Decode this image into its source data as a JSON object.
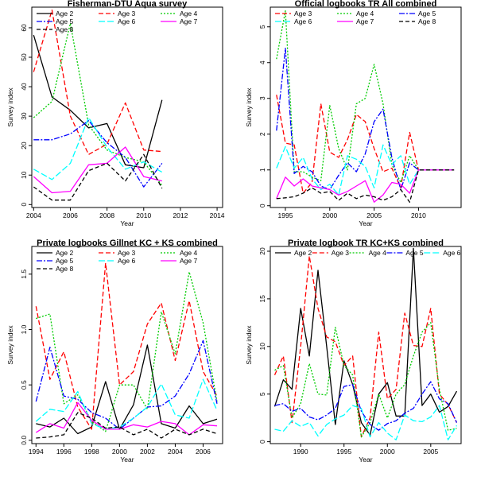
{
  "colors": {
    "Age 2": "#000000",
    "Age 3": "#ff0000",
    "Age 4": "#00cc00",
    "Age 5": "#0000ff",
    "Age 6": "#00ffff",
    "Age 7": "#ff00ff",
    "Age 8": "#000000"
  },
  "dash": {
    "Age 2": "",
    "Age 3": "6,3",
    "Age 4": "2,2",
    "Age 5": "7,2,2,2",
    "Age 6": "8,3",
    "Age 7": "",
    "Age 8": "5,3"
  },
  "chart_data": [
    {
      "type": "line",
      "title": "Fisherman-DTU Aqua survey",
      "xlabel": "Year",
      "ylabel": "Survey index",
      "xlim": [
        2003.9,
        2014.3
      ],
      "ylim": [
        -1,
        67
      ],
      "xticks": [
        2004,
        2006,
        2008,
        2010,
        2012,
        2014
      ],
      "yticks": [
        0,
        10,
        20,
        30,
        40,
        50,
        60
      ],
      "legend_cols": 3,
      "legend": [
        "Age 2",
        "Age 3",
        "Age 4",
        "Age 5",
        "Age 6",
        "Age 7",
        "Age 8"
      ],
      "x": [
        2004,
        2005,
        2006,
        2007,
        2008,
        2009,
        2010,
        2011
      ],
      "series": [
        {
          "name": "Age 2",
          "values": [
            57.5,
            36.5,
            32,
            26,
            27.5,
            13.5,
            12.5,
            35.5
          ]
        },
        {
          "name": "Age 3",
          "values": [
            45,
            66,
            30,
            17,
            20.5,
            34.5,
            18.5,
            18
          ]
        },
        {
          "name": "Age 4",
          "values": [
            29.5,
            35,
            61.5,
            27,
            18.5,
            16,
            14.5,
            6.5
          ]
        },
        {
          "name": "Age 5",
          "values": [
            22,
            22,
            24,
            28.5,
            21,
            16,
            6,
            14
          ]
        },
        {
          "name": "Age 6",
          "values": [
            12,
            8.5,
            14,
            29.5,
            19.5,
            12,
            14.5,
            11
          ]
        },
        {
          "name": "Age 7",
          "values": [
            9.5,
            4,
            4.5,
            13.5,
            14,
            19.5,
            9.5,
            8
          ]
        },
        {
          "name": "Age 8",
          "values": [
            6,
            1.5,
            1.5,
            11.5,
            14,
            8,
            17,
            5.5
          ]
        }
      ]
    },
    {
      "type": "line",
      "title": "Official logbooks TR All combined",
      "xlabel": "Year",
      "ylabel": "Survey index",
      "xlim": [
        1993.3,
        2014.8
      ],
      "ylim": [
        -0.05,
        5.55
      ],
      "xticks": [
        1995,
        2000,
        2005,
        2010
      ],
      "yticks": [
        0,
        1,
        2,
        3,
        4,
        5
      ],
      "legend_cols": 3,
      "legend": [
        "Age 3",
        "Age 4",
        "Age 5",
        "Age 6",
        "Age 7",
        "Age 8"
      ],
      "x": [
        1994,
        1995,
        1996,
        1997,
        1998,
        1999,
        2000,
        2001,
        2002,
        2003,
        2004,
        2005,
        2006,
        2007,
        2008,
        2009,
        2010,
        2011,
        2012,
        2013,
        2014
      ],
      "series": [
        {
          "name": "Age 3",
          "values": [
            3.1,
            1.75,
            1.7,
            0.35,
            0.65,
            2.85,
            1.5,
            1.35,
            1.85,
            2.55,
            2.35,
            1.6,
            0.95,
            1.05,
            0.5,
            2.05,
            1.0,
            1.0,
            1.0,
            1.0,
            1.0
          ]
        },
        {
          "name": "Age 4",
          "values": [
            4.1,
            5.45,
            0.95,
            0.95,
            0.8,
            0.7,
            2.8,
            1.6,
            1.0,
            2.85,
            3.0,
            3.95,
            2.85,
            1.15,
            0.65,
            1.4,
            1.0,
            1.0,
            1.0,
            1.0,
            1.0
          ]
        },
        {
          "name": "Age 5",
          "values": [
            2.1,
            4.4,
            0.9,
            1.1,
            0.95,
            0.55,
            0.45,
            0.85,
            1.2,
            0.95,
            1.45,
            2.35,
            2.7,
            1.35,
            0.45,
            1.2,
            1.0,
            1.0,
            1.0,
            1.0,
            1.0
          ]
        },
        {
          "name": "Age 6",
          "values": [
            1.05,
            1.65,
            1.05,
            1.35,
            0.75,
            0.45,
            0.6,
            0.3,
            1.4,
            1.3,
            1.1,
            0.5,
            1.7,
            1.15,
            1.4,
            0.6,
            1.0,
            1.0,
            1.0,
            1.0,
            1.0
          ]
        },
        {
          "name": "Age 7",
          "values": [
            0.2,
            0.8,
            0.55,
            0.75,
            0.55,
            0.5,
            0.45,
            0.3,
            0.4,
            0.55,
            0.7,
            0.1,
            0.3,
            0.65,
            0.6,
            0.35,
            1.0,
            1.0,
            1.0,
            1.0,
            1.0
          ]
        },
        {
          "name": "Age 8",
          "values": [
            0.2,
            0.22,
            0.25,
            0.35,
            0.5,
            0.35,
            0.4,
            0.15,
            0.35,
            0.2,
            0.3,
            0.25,
            0.15,
            0.25,
            0.45,
            0.1,
            1.0,
            1.0,
            1.0,
            1.0,
            1.0
          ]
        }
      ]
    },
    {
      "type": "line",
      "title": "Private logbooks Gillnet KC + KS combined",
      "xlabel": "Year",
      "ylabel": "Survey index",
      "xlim": [
        1993.7,
        2007.4
      ],
      "ylim": [
        -0.03,
        1.75
      ],
      "xticks": [
        1994,
        1996,
        1998,
        2000,
        2002,
        2004,
        2006
      ],
      "yticks": [
        0.0,
        0.5,
        1.0,
        1.5
      ],
      "legend_cols": 3,
      "legend": [
        "Age 2",
        "Age 3",
        "Age 4",
        "Age 5",
        "Age 6",
        "Age 7",
        "Age 8"
      ],
      "x": [
        1994,
        1995,
        1996,
        1997,
        1998,
        1999,
        2000,
        2001,
        2002,
        2003,
        2004,
        2005,
        2006,
        2007
      ],
      "series": [
        {
          "name": "Age 2",
          "values": [
            0.15,
            0.12,
            0.2,
            0.06,
            0.12,
            0.53,
            0.1,
            0.32,
            0.86,
            0.15,
            0.11,
            0.31,
            0.15,
            0.19
          ]
        },
        {
          "name": "Age 3",
          "values": [
            1.21,
            0.55,
            0.8,
            0.3,
            0.1,
            1.6,
            0.5,
            0.62,
            1.05,
            1.24,
            0.72,
            1.26,
            0.62,
            0.4
          ]
        },
        {
          "name": "Age 4",
          "values": [
            1.1,
            1.14,
            0.33,
            0.41,
            0.17,
            0.08,
            0.5,
            0.5,
            0.28,
            1.16,
            0.78,
            1.52,
            1.06,
            0.35
          ]
        },
        {
          "name": "Age 5",
          "values": [
            0.35,
            0.84,
            0.4,
            0.37,
            0.25,
            0.2,
            0.1,
            0.2,
            0.3,
            0.31,
            0.4,
            0.6,
            0.9,
            0.33
          ]
        },
        {
          "name": "Age 6",
          "values": [
            0.17,
            0.28,
            0.26,
            0.44,
            0.15,
            0.1,
            0.12,
            0.2,
            0.3,
            0.51,
            0.23,
            0.2,
            0.55,
            0.27
          ]
        },
        {
          "name": "Age 7",
          "values": [
            0.07,
            0.15,
            0.11,
            0.34,
            0.18,
            0.1,
            0.1,
            0.14,
            0.12,
            0.17,
            0.15,
            0.05,
            0.14,
            0.13
          ]
        },
        {
          "name": "Age 8",
          "values": [
            0.02,
            0.03,
            0.05,
            0.25,
            0.2,
            0.11,
            0.12,
            0.05,
            0.1,
            0.02,
            0.1,
            0.05,
            0.1,
            0.06
          ]
        }
      ]
    },
    {
      "type": "line",
      "title": "Private logbook TR KC+KS combined",
      "xlabel": "Year",
      "ylabel": "Survey index",
      "xlim": [
        1986.5,
        2008.5
      ],
      "ylim": [
        -0.2,
        20.5
      ],
      "xticks": [
        1990,
        1995,
        2000,
        2005
      ],
      "yticks": [
        0,
        5,
        10,
        15,
        20
      ],
      "legend_cols": 5,
      "legend": [
        "Age 2",
        "Age 3",
        "Age 4",
        "Age 5",
        "Age 6"
      ],
      "x": [
        1987,
        1988,
        1989,
        1990,
        1991,
        1992,
        1993,
        1994,
        1995,
        1996,
        1997,
        1998,
        1999,
        2000,
        2001,
        2002,
        2003,
        2004,
        2005,
        2006,
        2007,
        2008
      ],
      "series": [
        {
          "name": "Age 2",
          "values": [
            3.7,
            6.5,
            5.5,
            14,
            9,
            18,
            10,
            1.8,
            8.5,
            6,
            2,
            0.7,
            5,
            6.2,
            2.7,
            2.7,
            20.3,
            3.8,
            5,
            3.1,
            3.7,
            5.3
          ]
        },
        {
          "name": "Age 3",
          "values": [
            7,
            9,
            2,
            10,
            19.5,
            14,
            11,
            10.5,
            8,
            9,
            0.5,
            2.5,
            11.5,
            4.5,
            5.5,
            13.5,
            10.1,
            10,
            14,
            5,
            3.9,
            2
          ]
        },
        {
          "name": "Age 4",
          "values": [
            7.5,
            8,
            2.5,
            4,
            8.2,
            5,
            4.9,
            12,
            8,
            7,
            0.5,
            2,
            5,
            2.5,
            5,
            6,
            9,
            11.5,
            12.5,
            5.5,
            1.2,
            1.4
          ]
        },
        {
          "name": "Age 5",
          "values": [
            3.8,
            4,
            3.2,
            3.5,
            2.6,
            2.3,
            2.8,
            3.5,
            5.8,
            6,
            3.2,
            1.8,
            1.2,
            1.9,
            2.2,
            3,
            3.5,
            5,
            6.3,
            4.5,
            4,
            2
          ]
        },
        {
          "name": "Age 6",
          "values": [
            1.3,
            1.1,
            2.2,
            1.6,
            2,
            0.6,
            1.8,
            2.4,
            2.8,
            3.8,
            3.5,
            0.5,
            2,
            0.9,
            0.2,
            2.8,
            2.2,
            2.1,
            2.6,
            3.8,
            0.2,
            1.7
          ]
        }
      ]
    }
  ]
}
